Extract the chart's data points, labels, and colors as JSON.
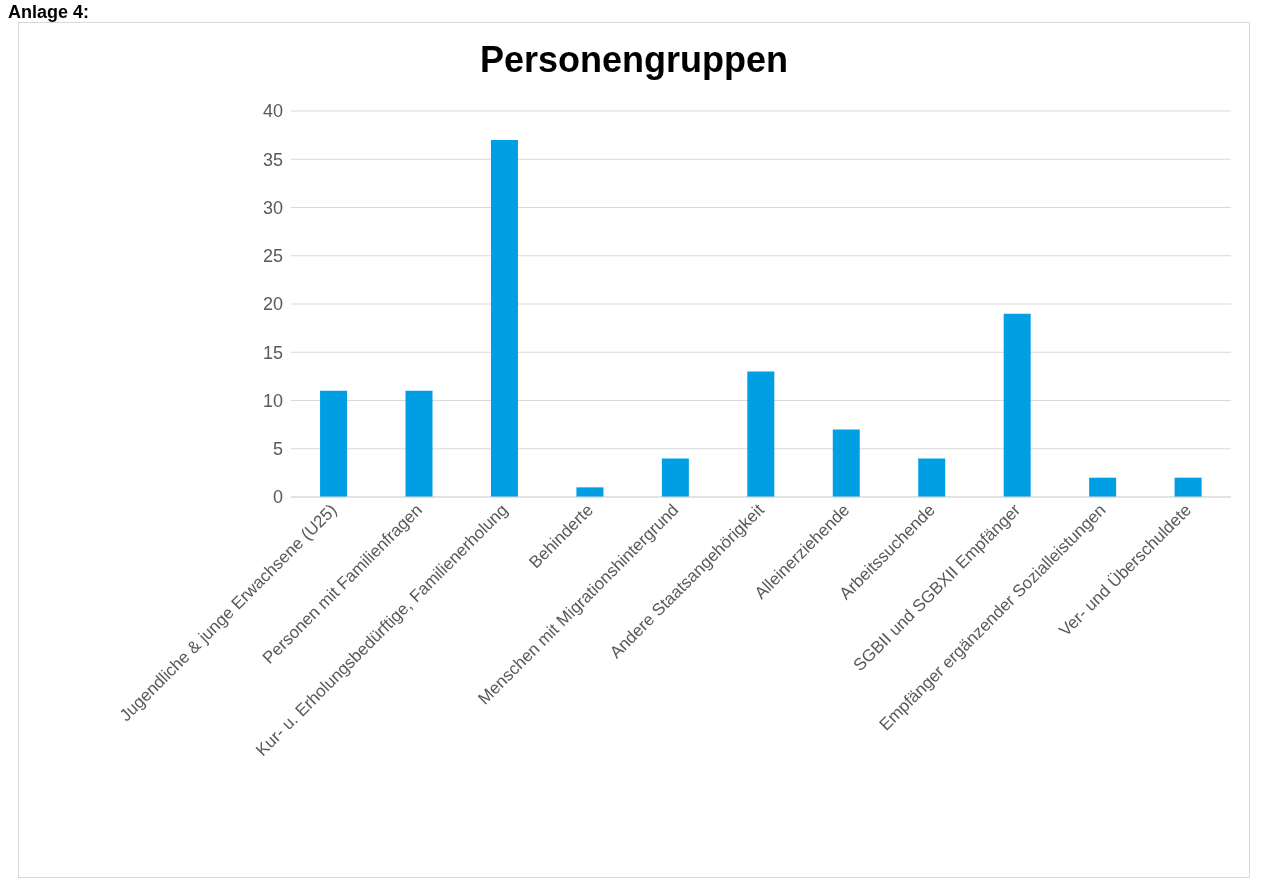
{
  "chart_data": {
    "type": "bar",
    "title": "Personengruppen",
    "annotations": [
      "Anlage 4:"
    ],
    "categories": [
      "Jugendliche & junge Erwachsene (U25)",
      "Personen mit Familienfragen",
      "Kur- u. Erholungsbedürftige, Familienerholung",
      "Behinderte",
      "Menschen mit Migrationshintergrund",
      "Andere Staatsangehörigkeit",
      "Alleinerziehende",
      "Arbeitssuchende",
      "SGBII und SGBXII Empfänger",
      "Empfänger ergänzender Sozialleistungen",
      "Ver- und Überschuldete"
    ],
    "values": [
      11,
      11,
      37,
      1,
      4,
      13,
      7,
      4,
      19,
      2,
      2
    ],
    "color": "#009fe3",
    "ylim": [
      0,
      40
    ],
    "yticks": [
      0,
      5,
      10,
      15,
      20,
      25,
      30,
      35,
      40
    ],
    "grid": "y"
  }
}
